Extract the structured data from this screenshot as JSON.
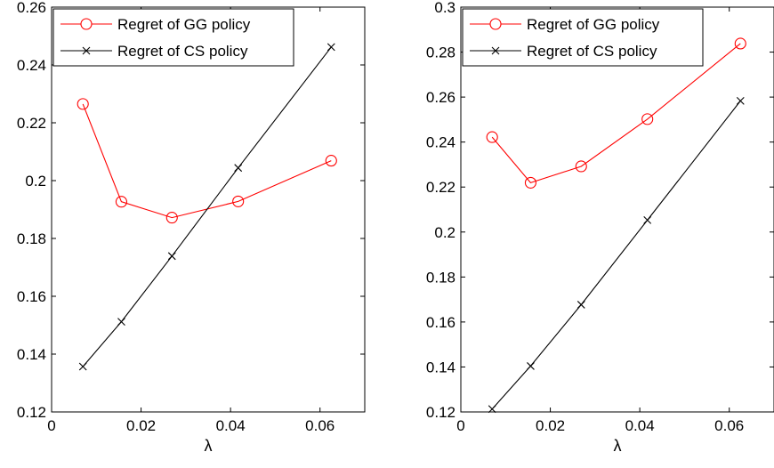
{
  "chart_data": [
    {
      "type": "line",
      "xlabel": "λ",
      "ylabel": "",
      "xlim": [
        0,
        0.07
      ],
      "ylim": [
        0.12,
        0.26
      ],
      "xticks": [
        0,
        0.02,
        0.04,
        0.06
      ],
      "xtick_labels": [
        "0",
        "0.02",
        "0.04",
        "0.06"
      ],
      "yticks": [
        0.12,
        0.14,
        0.16,
        0.18,
        0.2,
        0.22,
        0.24,
        0.26
      ],
      "ytick_labels": [
        "0.12",
        "0.14",
        "0.16",
        "0.18",
        "0.2",
        "0.22",
        "0.24",
        "0.26"
      ],
      "grid": false,
      "legend_position": "top-left",
      "series": [
        {
          "name": "Regret of GG policy",
          "color": "#ff0000",
          "marker": "circle",
          "x": [
            0.007,
            0.0156,
            0.0269,
            0.0417,
            0.0625
          ],
          "y": [
            0.2265,
            0.1927,
            0.1872,
            0.1928,
            0.2069
          ]
        },
        {
          "name": "Regret of CS policy",
          "color": "#000000",
          "marker": "x",
          "x": [
            0.007,
            0.0156,
            0.0269,
            0.0417,
            0.0625
          ],
          "y": [
            0.1357,
            0.1512,
            0.1739,
            0.2044,
            0.2462
          ]
        }
      ]
    },
    {
      "type": "line",
      "xlabel": "λ",
      "ylabel": "",
      "xlim": [
        0,
        0.07
      ],
      "ylim": [
        0.12,
        0.3
      ],
      "xticks": [
        0,
        0.02,
        0.04,
        0.06
      ],
      "xtick_labels": [
        "0",
        "0.02",
        "0.04",
        "0.06"
      ],
      "yticks": [
        0.12,
        0.14,
        0.16,
        0.18,
        0.2,
        0.22,
        0.24,
        0.26,
        0.28,
        0.3
      ],
      "ytick_labels": [
        "0.12",
        "0.14",
        "0.16",
        "0.18",
        "0.2",
        "0.22",
        "0.24",
        "0.26",
        "0.28",
        "0.3"
      ],
      "grid": false,
      "legend_position": "top-left",
      "series": [
        {
          "name": "Regret of GG policy",
          "color": "#ff0000",
          "marker": "circle",
          "x": [
            0.007,
            0.0156,
            0.0269,
            0.0417,
            0.0625
          ],
          "y": [
            0.2422,
            0.2219,
            0.2292,
            0.2502,
            0.2838
          ]
        },
        {
          "name": "Regret of CS policy",
          "color": "#000000",
          "marker": "x",
          "x": [
            0.007,
            0.0156,
            0.0269,
            0.0417,
            0.0625
          ],
          "y": [
            0.1213,
            0.1404,
            0.1677,
            0.2053,
            0.2583
          ]
        }
      ]
    }
  ]
}
